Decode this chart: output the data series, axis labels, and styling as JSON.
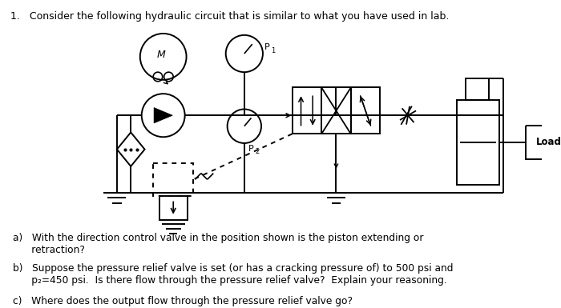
{
  "title_text": "1.   Consider the following hydraulic circuit that is similar to what you have used in lab.",
  "question_a": "a)   With the direction control valve in the position shown is the piston extending or\n      retraction?",
  "question_b": "b)   Suppose the pressure relief valve is set (or has a cracking pressure of) to 500 psi and\n      p₂=450 psi.  Is there flow through the pressure relief valve?  Explain your reasoning.",
  "question_c": "c)   Where does the output flow through the pressure relief valve go?",
  "bg_color": "#ffffff",
  "text_color": "#000000",
  "label_M": "M",
  "label_P1": "P",
  "label_P1sub": "1",
  "label_P2": "P",
  "label_P2sub": "2",
  "label_Load": "Load"
}
